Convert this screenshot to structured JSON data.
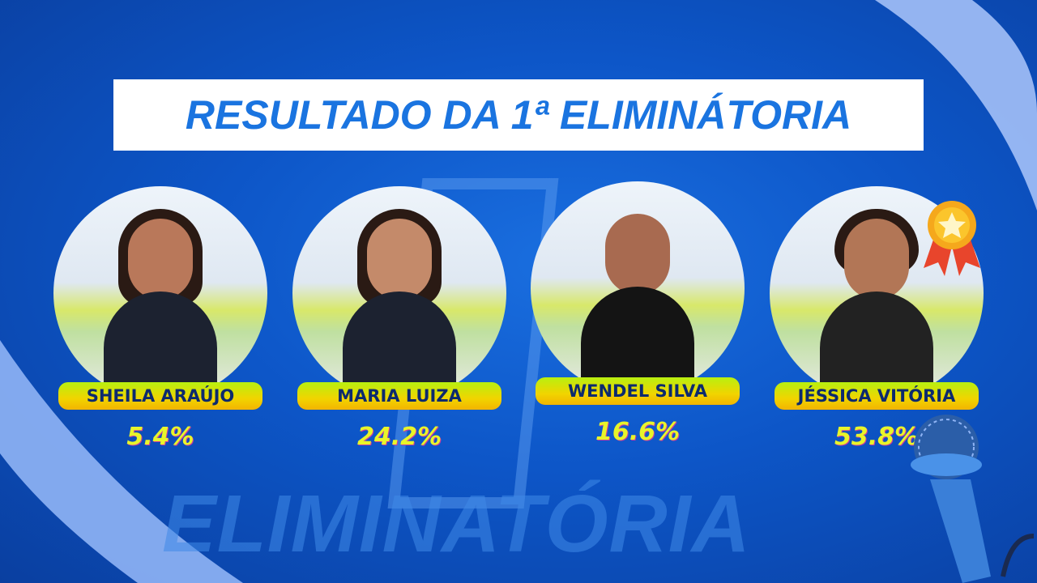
{
  "title": "RESULTADO DA 1ª ELIMINÁTORIA",
  "background_word": "ELIMINATÓRIA",
  "colors": {
    "background": "#0d56c8",
    "title_text": "#1a74e0",
    "pill": "#f1d400",
    "name_text": "#0c2a6e",
    "percent": "#e8f52a"
  },
  "contestants": [
    {
      "name": "SHEILA ARAÚJO",
      "percent": "5.4%"
    },
    {
      "name": "MARIA LUIZA",
      "percent": "24.2%"
    },
    {
      "name": "WENDEL SILVA",
      "percent": "16.6%"
    },
    {
      "name": "JÉSSICA VITÓRIA",
      "percent": "53.8%",
      "winner": true
    }
  ],
  "icons": {
    "winner": "medal-star-icon",
    "decoration": "microphone-icon"
  }
}
